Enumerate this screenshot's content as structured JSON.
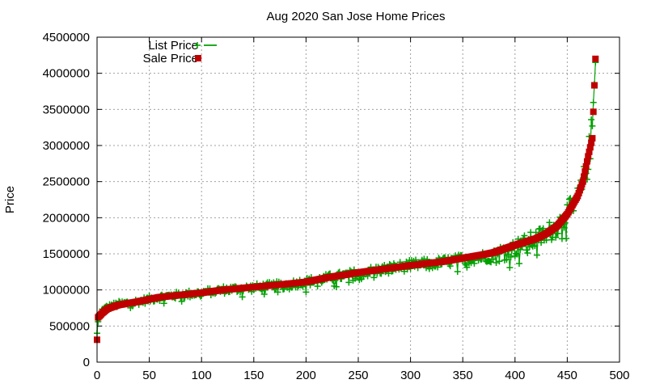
{
  "chart_data": {
    "type": "scatter",
    "title": "Aug 2020 San Jose Home Prices",
    "xlabel": "",
    "ylabel": "Price",
    "xlim": [
      0,
      500
    ],
    "ylim": [
      0,
      4500000
    ],
    "xticks": [
      0,
      50,
      100,
      150,
      200,
      250,
      300,
      350,
      400,
      450,
      500
    ],
    "yticks": [
      0,
      500000,
      1000000,
      1500000,
      2000000,
      2500000,
      3000000,
      3500000,
      4000000,
      4500000
    ],
    "grid": true,
    "legend_position": "top-left",
    "n_points": 478,
    "series": [
      {
        "name": "List Price",
        "marker": "plus",
        "line": true,
        "color": "#00a000",
        "deviation_note": "list price scatters around sale price by roughly ±8%",
        "curve_x": [
          0,
          1,
          5,
          10,
          20,
          40,
          60,
          80,
          100,
          120,
          150,
          180,
          200,
          220,
          250,
          280,
          300,
          330,
          350,
          370,
          380,
          400,
          420,
          430,
          440,
          450,
          460,
          465,
          470,
          474,
          477
        ],
        "curve_y": [
          400000,
          560000,
          720000,
          760000,
          800000,
          840000,
          900000,
          930000,
          960000,
          1000000,
          1030000,
          1070000,
          1110000,
          1160000,
          1230000,
          1300000,
          1340000,
          1380000,
          1420000,
          1460000,
          1480000,
          1580000,
          1700000,
          1780000,
          1880000,
          2050000,
          2250000,
          2450000,
          2800000,
          3250000,
          4150000
        ]
      },
      {
        "name": "Sale Price",
        "marker": "square",
        "line": false,
        "color": "#c00000",
        "curve_x": [
          0,
          1,
          5,
          10,
          20,
          40,
          60,
          80,
          100,
          120,
          150,
          180,
          200,
          220,
          250,
          280,
          300,
          330,
          350,
          370,
          380,
          400,
          420,
          430,
          440,
          450,
          460,
          465,
          470,
          474,
          477
        ],
        "curve_y": [
          310000,
          620000,
          680000,
          740000,
          790000,
          840000,
          900000,
          930000,
          960000,
          1000000,
          1040000,
          1080000,
          1110000,
          1170000,
          1240000,
          1300000,
          1340000,
          1390000,
          1440000,
          1490000,
          1520000,
          1620000,
          1710000,
          1780000,
          1880000,
          2050000,
          2300000,
          2500000,
          2850000,
          3100000,
          4200000
        ]
      }
    ]
  }
}
